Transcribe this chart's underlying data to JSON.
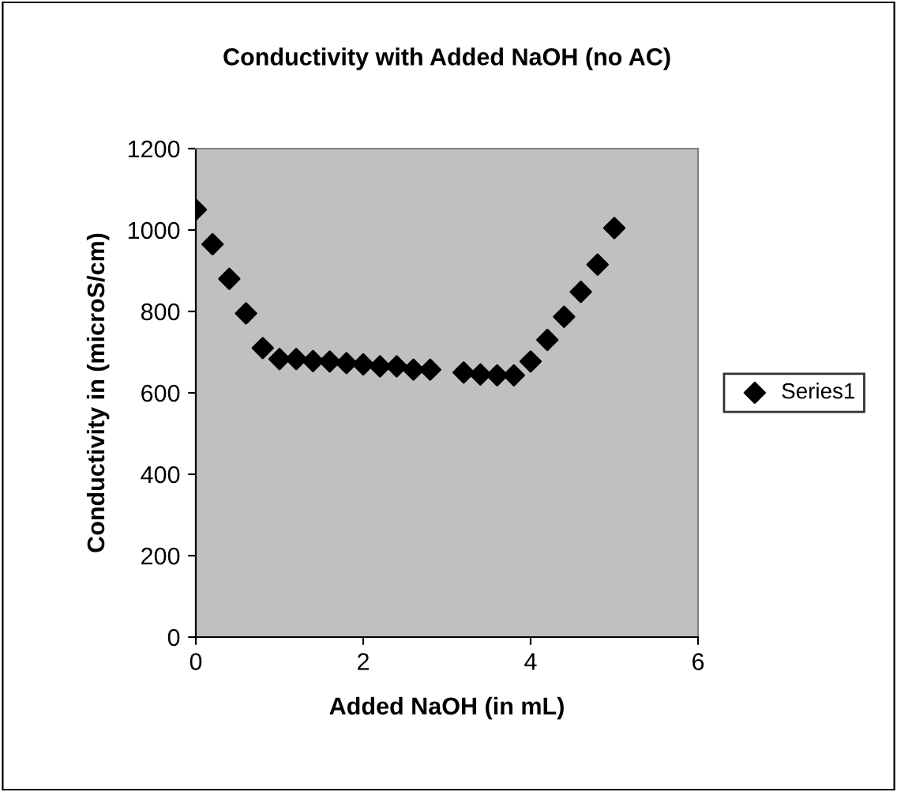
{
  "chart_data": {
    "type": "scatter",
    "title": "Conductivity with Added NaOH (no AC)",
    "xlabel": "Added NaOH (in mL)",
    "ylabel": "Conductivity in (microS/cm)",
    "x": [
      0,
      0.2,
      0.4,
      0.6,
      0.8,
      1.0,
      1.2,
      1.4,
      1.6,
      1.8,
      2.0,
      2.2,
      2.4,
      2.6,
      2.8,
      3.2,
      3.4,
      3.6,
      3.8,
      4.0,
      4.2,
      4.4,
      4.6,
      4.8,
      5.0
    ],
    "series": [
      {
        "name": "Series1",
        "color": "#000000",
        "values": [
          1050,
          965,
          880,
          795,
          710,
          683,
          683,
          678,
          677,
          673,
          670,
          665,
          665,
          657,
          657,
          650,
          645,
          643,
          643,
          677,
          730,
          787,
          848,
          915,
          1005
        ]
      }
    ],
    "xlim": [
      0,
      6
    ],
    "xticks": [
      0,
      2,
      4,
      6
    ],
    "ylim": [
      0,
      1200
    ],
    "yticks": [
      0,
      200,
      400,
      600,
      800,
      1000,
      1200
    ],
    "marker": "diamond",
    "legend": "right",
    "grid": false
  }
}
